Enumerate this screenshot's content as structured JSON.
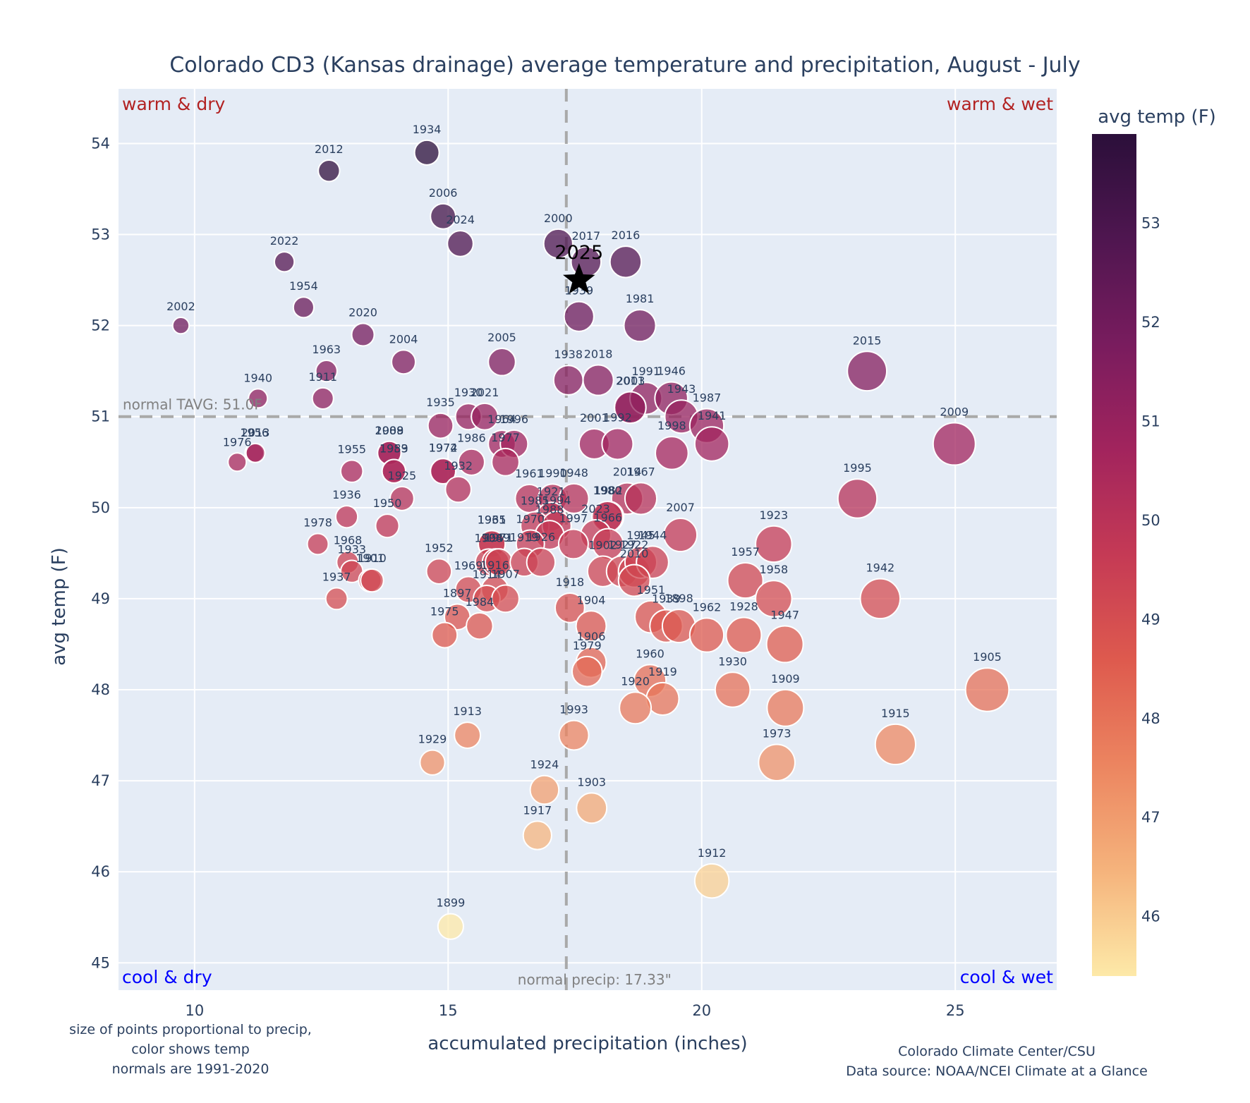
{
  "chart_data": {
    "type": "scatter",
    "title": "Colorado CD3 (Kansas drainage) average temperature and precipitation, August - July",
    "xlabel": "accumulated precipitation (inches)",
    "ylabel": "avg temp (F)",
    "xlim": [
      8.5,
      27
    ],
    "ylim": [
      44.7,
      54.6
    ],
    "xticks": [
      10,
      15,
      20,
      25
    ],
    "yticks": [
      45,
      46,
      47,
      48,
      49,
      50,
      51,
      52,
      53,
      54
    ],
    "grid": true,
    "normals": {
      "precip": 17.33,
      "temp": 51.0,
      "precip_label": "normal precip: 17.33\"",
      "temp_label": "normal TAVG: 51.0F"
    },
    "quadrants": {
      "top_left": "warm & dry",
      "top_right": "warm & wet",
      "bottom_left": "cool & dry",
      "bottom_right": "cool & wet",
      "warm_color": "#b22222",
      "cool_color": "#0000ff"
    },
    "colorbar": {
      "title": "avg temp (F)",
      "ticks": [
        46,
        47,
        48,
        49,
        50,
        51,
        52,
        53
      ],
      "range": [
        45.4,
        53.9
      ],
      "colorscale": [
        "#fde9a8",
        "#f5b37c",
        "#ec8560",
        "#de5a4e",
        "#c53a55",
        "#a2245d",
        "#791c5e",
        "#4f1650",
        "#2b0f3a"
      ],
      "placement": "right"
    },
    "highlight": {
      "label": "2025",
      "x": 17.58,
      "y": 52.5,
      "marker": "star"
    },
    "points": [
      {
        "year": "1934",
        "x": 14.58,
        "y": 53.9
      },
      {
        "year": "2012",
        "x": 12.65,
        "y": 53.7
      },
      {
        "year": "2006",
        "x": 14.9,
        "y": 53.2
      },
      {
        "year": "2024",
        "x": 15.24,
        "y": 52.9
      },
      {
        "year": "2000",
        "x": 17.17,
        "y": 52.9
      },
      {
        "year": "2017",
        "x": 17.72,
        "y": 52.7
      },
      {
        "year": "2016",
        "x": 18.5,
        "y": 52.7
      },
      {
        "year": "2022",
        "x": 11.77,
        "y": 52.7
      },
      {
        "year": "1954",
        "x": 12.15,
        "y": 52.2
      },
      {
        "year": "1939",
        "x": 17.58,
        "y": 52.1
      },
      {
        "year": "2002",
        "x": 9.73,
        "y": 52.0
      },
      {
        "year": "1981",
        "x": 18.78,
        "y": 52.0
      },
      {
        "year": "2020",
        "x": 13.32,
        "y": 51.9
      },
      {
        "year": "2004",
        "x": 14.12,
        "y": 51.6
      },
      {
        "year": "2005",
        "x": 16.06,
        "y": 51.6
      },
      {
        "year": "2015",
        "x": 23.26,
        "y": 51.5
      },
      {
        "year": "1963",
        "x": 12.6,
        "y": 51.5
      },
      {
        "year": "1938",
        "x": 17.37,
        "y": 51.4
      },
      {
        "year": "2018",
        "x": 17.96,
        "y": 51.4
      },
      {
        "year": "1940",
        "x": 11.25,
        "y": 51.2
      },
      {
        "year": "1911",
        "x": 12.53,
        "y": 51.2
      },
      {
        "year": "2003",
        "x": 18.6,
        "y": 51.1
      },
      {
        "year": "1991",
        "x": 18.9,
        "y": 51.2
      },
      {
        "year": "1946",
        "x": 19.4,
        "y": 51.2
      },
      {
        "year": "1943",
        "x": 19.6,
        "y": 51.0
      },
      {
        "year": "1987",
        "x": 20.1,
        "y": 50.9
      },
      {
        "year": "1941",
        "x": 20.2,
        "y": 50.7
      },
      {
        "year": "2011",
        "x": 18.59,
        "y": 51.1
      },
      {
        "year": "1935",
        "x": 14.85,
        "y": 50.9
      },
      {
        "year": "1930",
        "x": 15.4,
        "y": 51.0
      },
      {
        "year": "2021",
        "x": 15.72,
        "y": 51.0
      },
      {
        "year": "1964",
        "x": 16.06,
        "y": 50.7
      },
      {
        "year": "1996",
        "x": 16.3,
        "y": 50.7
      },
      {
        "year": "2001",
        "x": 17.88,
        "y": 50.7
      },
      {
        "year": "1992",
        "x": 18.34,
        "y": 50.7
      },
      {
        "year": "1998",
        "x": 19.41,
        "y": 50.6
      },
      {
        "year": "2009",
        "x": 24.98,
        "y": 50.7
      },
      {
        "year": "1956",
        "x": 11.18,
        "y": 50.6
      },
      {
        "year": "2013",
        "x": 11.2,
        "y": 50.6
      },
      {
        "year": "1976",
        "x": 10.84,
        "y": 50.5
      },
      {
        "year": "1955",
        "x": 13.1,
        "y": 50.4
      },
      {
        "year": "2008",
        "x": 13.84,
        "y": 50.6
      },
      {
        "year": "1989",
        "x": 13.84,
        "y": 50.6
      },
      {
        "year": "1983",
        "x": 13.93,
        "y": 50.4
      },
      {
        "year": "1959",
        "x": 13.93,
        "y": 50.4
      },
      {
        "year": "1974",
        "x": 14.9,
        "y": 50.4
      },
      {
        "year": "1972",
        "x": 14.9,
        "y": 50.4
      },
      {
        "year": "1986",
        "x": 15.46,
        "y": 50.5
      },
      {
        "year": "1977",
        "x": 16.13,
        "y": 50.5
      },
      {
        "year": "1932",
        "x": 15.2,
        "y": 50.2
      },
      {
        "year": "1936",
        "x": 13.0,
        "y": 49.9
      },
      {
        "year": "1950",
        "x": 13.8,
        "y": 49.8
      },
      {
        "year": "1925",
        "x": 14.09,
        "y": 50.1
      },
      {
        "year": "1978",
        "x": 12.43,
        "y": 49.6
      },
      {
        "year": "1961",
        "x": 16.6,
        "y": 50.1
      },
      {
        "year": "1990",
        "x": 17.06,
        "y": 50.1
      },
      {
        "year": "1948",
        "x": 17.48,
        "y": 50.1
      },
      {
        "year": "2014",
        "x": 18.53,
        "y": 50.1
      },
      {
        "year": "1967",
        "x": 18.8,
        "y": 50.1
      },
      {
        "year": "1982",
        "x": 18.16,
        "y": 49.9
      },
      {
        "year": "1980",
        "x": 18.14,
        "y": 49.9
      },
      {
        "year": "1921",
        "x": 17.03,
        "y": 49.9
      },
      {
        "year": "1985",
        "x": 16.71,
        "y": 49.8
      },
      {
        "year": "1994",
        "x": 17.14,
        "y": 49.8
      },
      {
        "year": "1988",
        "x": 17.0,
        "y": 49.7
      },
      {
        "year": "2023",
        "x": 17.91,
        "y": 49.7
      },
      {
        "year": "1966",
        "x": 18.15,
        "y": 49.6
      },
      {
        "year": "2007",
        "x": 19.58,
        "y": 49.7
      },
      {
        "year": "1965",
        "x": 15.86,
        "y": 49.6
      },
      {
        "year": "1931",
        "x": 15.86,
        "y": 49.6
      },
      {
        "year": "1970",
        "x": 16.62,
        "y": 49.6
      },
      {
        "year": "1997",
        "x": 17.47,
        "y": 49.6
      },
      {
        "year": "1908",
        "x": 15.8,
        "y": 49.4
      },
      {
        "year": "1949",
        "x": 15.94,
        "y": 49.4
      },
      {
        "year": "1971",
        "x": 16.0,
        "y": 49.4
      },
      {
        "year": "1919",
        "x": 16.5,
        "y": 49.4
      },
      {
        "year": "1926",
        "x": 16.83,
        "y": 49.4
      },
      {
        "year": "1902",
        "x": 18.05,
        "y": 49.3
      },
      {
        "year": "1927",
        "x": 18.43,
        "y": 49.3
      },
      {
        "year": "1922",
        "x": 18.67,
        "y": 49.3
      },
      {
        "year": "1945",
        "x": 18.8,
        "y": 49.4
      },
      {
        "year": "1944",
        "x": 19.03,
        "y": 49.4
      },
      {
        "year": "2010",
        "x": 18.67,
        "y": 49.2
      },
      {
        "year": "1968",
        "x": 13.02,
        "y": 49.4
      },
      {
        "year": "1933",
        "x": 13.1,
        "y": 49.3
      },
      {
        "year": "1901",
        "x": 13.46,
        "y": 49.2
      },
      {
        "year": "1910",
        "x": 13.5,
        "y": 49.2
      },
      {
        "year": "1937",
        "x": 12.8,
        "y": 49.0
      },
      {
        "year": "1952",
        "x": 14.82,
        "y": 49.3
      },
      {
        "year": "1969",
        "x": 15.4,
        "y": 49.1
      },
      {
        "year": "1916",
        "x": 15.92,
        "y": 49.1
      },
      {
        "year": "1914",
        "x": 15.76,
        "y": 49.0
      },
      {
        "year": "1907",
        "x": 16.13,
        "y": 49.0
      },
      {
        "year": "1897",
        "x": 15.18,
        "y": 48.8
      },
      {
        "year": "1984",
        "x": 15.62,
        "y": 48.7
      },
      {
        "year": "1975",
        "x": 14.93,
        "y": 48.6
      },
      {
        "year": "1918",
        "x": 17.4,
        "y": 48.9
      },
      {
        "year": "1904",
        "x": 17.82,
        "y": 48.7
      },
      {
        "year": "1951",
        "x": 19.0,
        "y": 48.8
      },
      {
        "year": "1939b",
        "label": "1939",
        "x": 19.3,
        "y": 48.7
      },
      {
        "year": "1898",
        "x": 19.55,
        "y": 48.7
      },
      {
        "year": "1962",
        "x": 20.1,
        "y": 48.6
      },
      {
        "year": "1928",
        "x": 20.83,
        "y": 48.6
      },
      {
        "year": "1957",
        "x": 20.86,
        "y": 49.2
      },
      {
        "year": "1923",
        "x": 21.42,
        "y": 49.6
      },
      {
        "year": "1958",
        "x": 21.42,
        "y": 49.0
      },
      {
        "year": "1947",
        "x": 21.64,
        "y": 48.5
      },
      {
        "year": "1942",
        "x": 23.52,
        "y": 49.0
      },
      {
        "year": "1995",
        "x": 23.07,
        "y": 50.1
      },
      {
        "year": "1906",
        "x": 17.82,
        "y": 48.3
      },
      {
        "year": "1979",
        "x": 17.74,
        "y": 48.2
      },
      {
        "year": "1960",
        "x": 18.98,
        "y": 48.1
      },
      {
        "year": "1919b",
        "label": "1919",
        "x": 19.23,
        "y": 47.9
      },
      {
        "year": "1920",
        "x": 18.69,
        "y": 47.8
      },
      {
        "year": "1930b",
        "label": "1930",
        "x": 20.61,
        "y": 48.0
      },
      {
        "year": "1909",
        "x": 21.65,
        "y": 47.8
      },
      {
        "year": "1905",
        "x": 25.63,
        "y": 48.0
      },
      {
        "year": "1915",
        "x": 23.82,
        "y": 47.4
      },
      {
        "year": "1973",
        "x": 21.48,
        "y": 47.2
      },
      {
        "year": "1913",
        "x": 15.38,
        "y": 47.5
      },
      {
        "year": "1929",
        "x": 14.69,
        "y": 47.2
      },
      {
        "year": "1993",
        "x": 17.48,
        "y": 47.5
      },
      {
        "year": "1924",
        "x": 16.9,
        "y": 46.9
      },
      {
        "year": "1903",
        "x": 17.83,
        "y": 46.7
      },
      {
        "year": "1917",
        "x": 16.76,
        "y": 46.4
      },
      {
        "year": "1912",
        "x": 20.2,
        "y": 45.9
      },
      {
        "year": "1899",
        "x": 15.05,
        "y": 45.4
      }
    ]
  },
  "annotations": {
    "left_note": [
      "size of points proportional to precip,",
      "color shows temp",
      "normals are 1991-2020"
    ],
    "right_note": [
      "Colorado Climate Center/CSU",
      "Data source: NOAA/NCEI Climate at a Glance"
    ]
  }
}
